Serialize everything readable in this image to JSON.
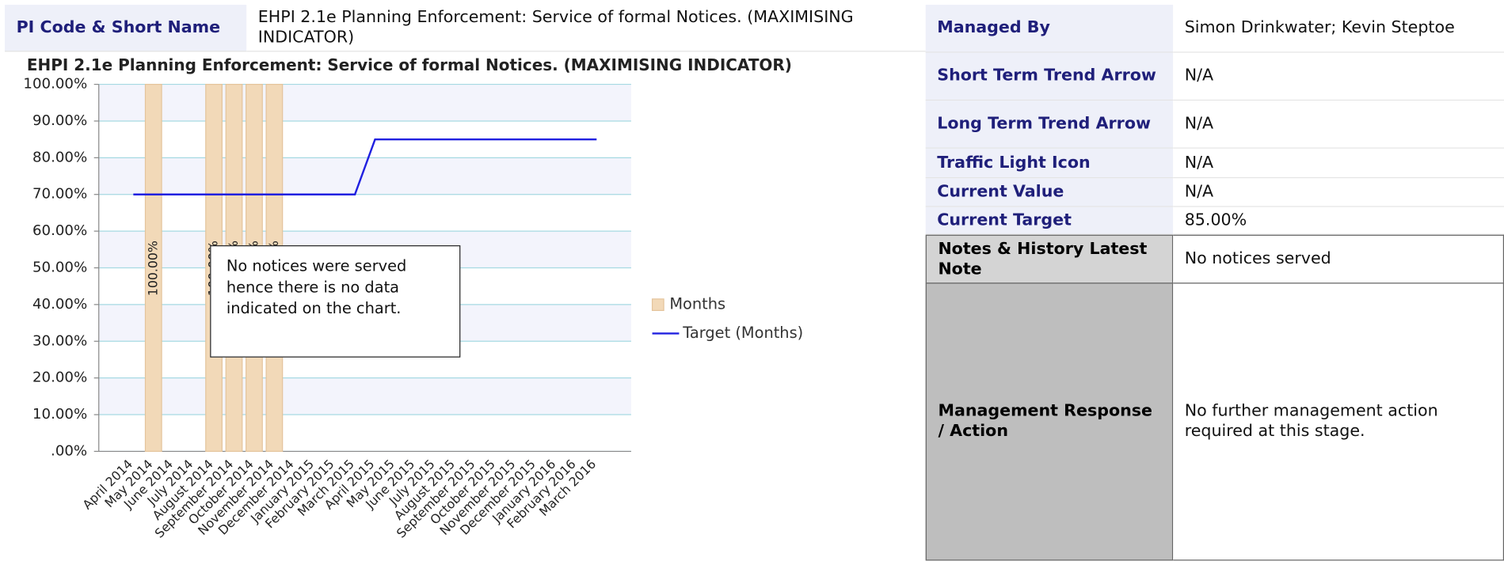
{
  "header": {
    "label": "PI Code & Short Name",
    "value": "EHPI 2.1e Planning Enforcement: Service of formal Notices. (MAXIMISING INDICATOR)"
  },
  "chart_data": {
    "type": "bar",
    "title": "EHPI 2.1e Planning Enforcement: Service of formal Notices. (MAXIMISING INDICATOR)",
    "categories": [
      "April 2014",
      "May 2014",
      "June 2014",
      "July 2014",
      "August 2014",
      "September 2014",
      "October 2014",
      "November 2014",
      "December 2014",
      "January 2015",
      "February 2015",
      "March 2015",
      "April 2015",
      "May 2015",
      "June 2015",
      "July 2015",
      "August 2015",
      "September 2015",
      "October 2015",
      "November 2015",
      "December 2015",
      "January 2016",
      "February 2016",
      "March 2016"
    ],
    "series": [
      {
        "name": "Months",
        "color": "#f2d9b8",
        "values": [
          null,
          100,
          null,
          null,
          100,
          100,
          100,
          100,
          null,
          null,
          null,
          null,
          null,
          null,
          null,
          null,
          null,
          null,
          null,
          null,
          null,
          null,
          null,
          null
        ],
        "value_labels": [
          null,
          "100.00%",
          null,
          null,
          "100.00%",
          "100.00%",
          "100.00%",
          "100.00%",
          null,
          null,
          null,
          null,
          null,
          null,
          null,
          null,
          null,
          null,
          null,
          null,
          null,
          null,
          null,
          null
        ]
      },
      {
        "name": "Target (Months)",
        "color": "#2020e0",
        "type": "line",
        "values": [
          70,
          70,
          70,
          70,
          70,
          70,
          70,
          70,
          70,
          70,
          70,
          70,
          85,
          85,
          85,
          85,
          85,
          85,
          85,
          85,
          85,
          85,
          85,
          85
        ]
      }
    ],
    "ylim": [
      0,
      100
    ],
    "yticks": [
      {
        "value": 0,
        "label": ".00%"
      },
      {
        "value": 10,
        "label": "10.00%"
      },
      {
        "value": 20,
        "label": "20.00%"
      },
      {
        "value": 30,
        "label": "30.00%"
      },
      {
        "value": 40,
        "label": "40.00%"
      },
      {
        "value": 50,
        "label": "50.00%"
      },
      {
        "value": 60,
        "label": "60.00%"
      },
      {
        "value": 70,
        "label": "70.00%"
      },
      {
        "value": 80,
        "label": "80.00%"
      },
      {
        "value": 90,
        "label": "90.00%"
      },
      {
        "value": 100,
        "label": "100.00%"
      }
    ],
    "grid": true,
    "annotation": "No notices were served hence there is no data indicated on the chart."
  },
  "details": [
    {
      "label": "Managed By",
      "value": "Simon Drinkwater; Kevin Steptoe"
    },
    {
      "label": "Short Term Trend Arrow",
      "value": "N/A"
    },
    {
      "label": "Long Term Trend Arrow",
      "value": "N/A"
    },
    {
      "label": "Traffic Light Icon",
      "value": "N/A"
    },
    {
      "label": "Current Value",
      "value": "N/A"
    },
    {
      "label": "Current Target",
      "value": "85.00%"
    },
    {
      "label": "Notes & History Latest Note",
      "value": "No notices served"
    },
    {
      "label": "Management Response / Action",
      "value": "No further management action required at this stage."
    }
  ]
}
